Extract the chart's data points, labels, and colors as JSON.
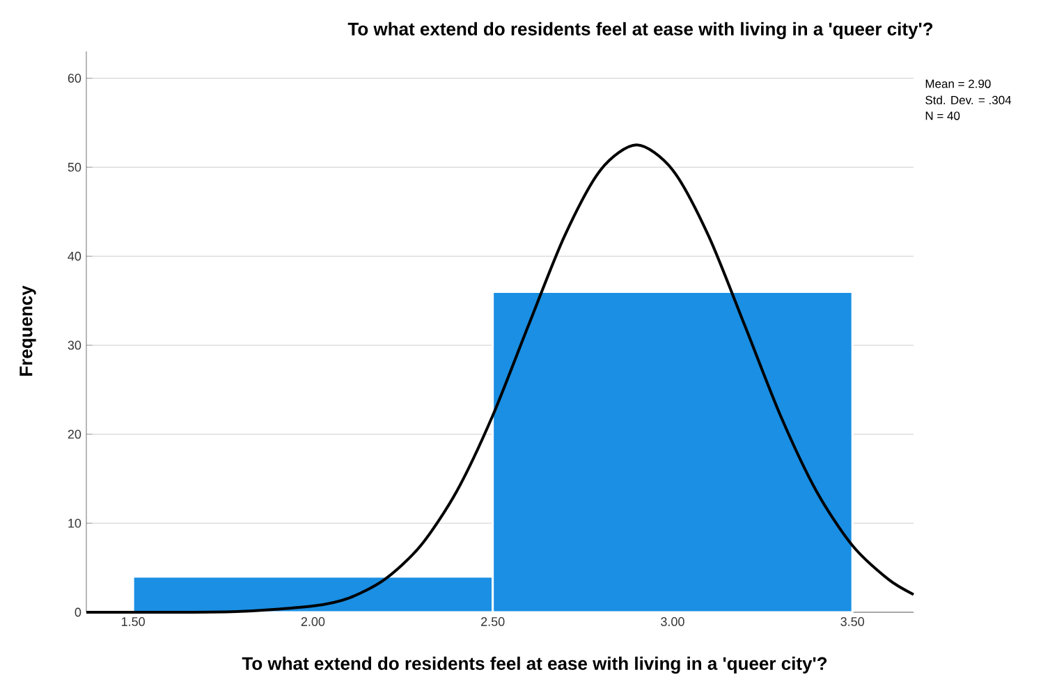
{
  "chart_data": {
    "type": "histogram",
    "title": "To what extend do residents feel at ease with living in a 'queer city'?",
    "xlabel": "To what extend do residents feel at ease with living in a 'queer city'?",
    "ylabel": "Frequency",
    "bins": [
      1.5,
      2.5,
      3.5
    ],
    "values": [
      4,
      36
    ],
    "color": "#1a8fe3",
    "series": [
      {
        "type": "line",
        "color": "#000000",
        "x": [
          1.37,
          1.6,
          1.8,
          2.0,
          2.1,
          2.2,
          2.3,
          2.4,
          2.5,
          2.6,
          2.7,
          2.8,
          2.9,
          3.0,
          3.1,
          3.2,
          3.3,
          3.4,
          3.5,
          3.6,
          3.67
        ],
        "values": [
          0,
          0,
          0.1,
          0.7,
          1.6,
          3.7,
          7.5,
          13.6,
          22.1,
          32.3,
          42.3,
          49.7,
          52.5,
          49.7,
          42.3,
          32.3,
          22.1,
          13.6,
          7.5,
          3.7,
          2
        ]
      }
    ],
    "xlim": [
      1.37,
      3.67
    ],
    "ylim": [
      0,
      63
    ],
    "xticks": [
      {
        "value": 1.5,
        "label": "1.50"
      },
      {
        "value": 2.0,
        "label": "2.00"
      },
      {
        "value": 2.5,
        "label": "2.50"
      },
      {
        "value": 3.0,
        "label": "3.00"
      },
      {
        "value": 3.5,
        "label": "3.50"
      }
    ],
    "yticks": [
      0,
      10,
      20,
      30,
      40,
      50,
      60
    ],
    "grid": "y",
    "annotations": [
      "Mean = 2.90",
      "Std. Dev. = .304",
      "N = 40"
    ]
  }
}
